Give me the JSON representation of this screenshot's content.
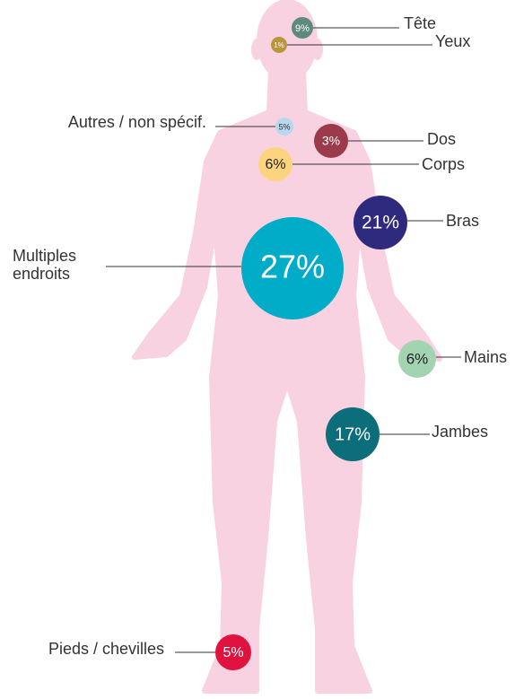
{
  "items": [
    {
      "label": "Tête",
      "value": 9,
      "value_label": "9%",
      "color": "#5e8a7e"
    },
    {
      "label": "Yeux",
      "value": 1,
      "value_label": "1%",
      "color": "#b8963e"
    },
    {
      "label": "Autres / non spécif.",
      "value": 5,
      "value_label": "5%",
      "color": "#b7d7ee"
    },
    {
      "label": "Dos",
      "value": 3,
      "value_label": "3%",
      "color": "#9b3a4a"
    },
    {
      "label": "Corps",
      "value": 6,
      "value_label": "6%",
      "color": "#fcd47e"
    },
    {
      "label": "Bras",
      "value": 21,
      "value_label": "21%",
      "color": "#2e2a7e"
    },
    {
      "label": "Multiples endroits",
      "value": 27,
      "value_label": "27%",
      "color": "#00acc8"
    },
    {
      "label": "Mains",
      "value": 6,
      "value_label": "6%",
      "color": "#a3d4b2"
    },
    {
      "label": "Jambes",
      "value": 17,
      "value_label": "17%",
      "color": "#0b6e7a"
    },
    {
      "label": "Pieds / chevilles",
      "value": 5,
      "value_label": "5%",
      "color": "#e0123f"
    }
  ]
}
